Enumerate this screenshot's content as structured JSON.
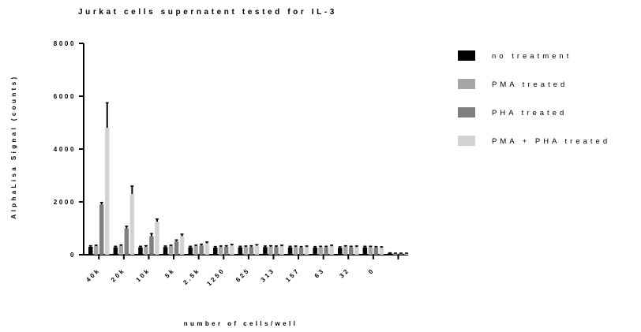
{
  "chart_data": {
    "type": "bar",
    "title": "Jurkat cells supernatent tested for IL-3",
    "xlabel": "number of cells/well",
    "ylabel": "AlphaLisa Signal (counts)",
    "ylim": [
      0,
      8000
    ],
    "yticks": [
      0,
      2000,
      4000,
      6000,
      8000
    ],
    "ytick_labels": [
      "0",
      "2000",
      "4000",
      "6000",
      "8000"
    ],
    "categories": [
      "40k",
      "20k",
      "10k",
      "5k",
      "2.5k",
      "1250",
      "625",
      "313",
      "157",
      "63",
      "32",
      "0",
      ""
    ],
    "legend_position": "right",
    "grid": false,
    "series": [
      {
        "name": "no treatment",
        "color": "#000000",
        "values": [
          300,
          280,
          280,
          290,
          280,
          270,
          280,
          290,
          280,
          270,
          260,
          280,
          60
        ],
        "errors": [
          40,
          40,
          40,
          40,
          40,
          40,
          40,
          40,
          40,
          40,
          40,
          40,
          10
        ]
      },
      {
        "name": "PMA treated",
        "color": "#a6a6a6",
        "values": [
          320,
          330,
          300,
          320,
          320,
          290,
          290,
          300,
          290,
          280,
          300,
          280,
          50
        ],
        "errors": [
          40,
          40,
          40,
          40,
          40,
          40,
          40,
          40,
          40,
          40,
          40,
          40,
          10
        ]
      },
      {
        "name": "PHA treated",
        "color": "#7f7f7f",
        "values": [
          1900,
          1000,
          700,
          500,
          350,
          300,
          300,
          290,
          270,
          280,
          280,
          270,
          50
        ],
        "errors": [
          80,
          80,
          100,
          60,
          50,
          40,
          40,
          40,
          40,
          40,
          40,
          40,
          10
        ]
      },
      {
        "name": "PMA + PHA treated",
        "color": "#d3d3d3",
        "values": [
          4800,
          2300,
          1250,
          700,
          430,
          350,
          340,
          320,
          290,
          320,
          290,
          260,
          50
        ],
        "errors": [
          950,
          300,
          100,
          80,
          50,
          40,
          40,
          40,
          40,
          40,
          40,
          40,
          10
        ]
      }
    ]
  }
}
